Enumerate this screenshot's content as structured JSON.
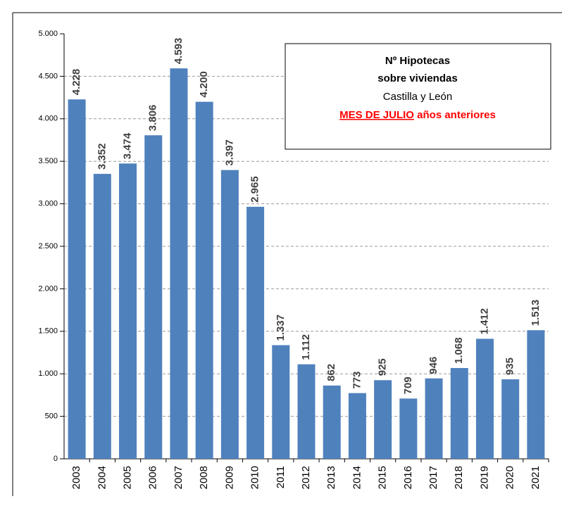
{
  "chart_data": {
    "type": "bar",
    "title": [
      "Nº Hipotecas",
      "sobre viviendas"
    ],
    "subtitle": "Castilla y León",
    "annotation": [
      "MES DE JULIO",
      "años anteriores"
    ],
    "categories": [
      "2003",
      "2004",
      "2005",
      "2006",
      "2007",
      "2008",
      "2009",
      "2010",
      "2011",
      "2012",
      "2013",
      "2014",
      "2015",
      "2016",
      "2017",
      "2018",
      "2019",
      "2020",
      "2021"
    ],
    "values": [
      4228,
      3352,
      3474,
      3806,
      4593,
      4200,
      3397,
      2965,
      1337,
      1112,
      862,
      773,
      925,
      709,
      946,
      1068,
      1412,
      935,
      1513
    ],
    "value_labels": [
      "4.228",
      "3.352",
      "3.474",
      "3.806",
      "4.593",
      "4.200",
      "3.397",
      "2.965",
      "1.337",
      "1.112",
      "862",
      "773",
      "925",
      "709",
      "946",
      "1.068",
      "1.412",
      "935",
      "1.513"
    ],
    "color": "#4f81bd",
    "ylim": [
      0,
      5000
    ],
    "yticks": [
      0,
      {
        "value": 500,
        "label": "500"
      },
      {
        "value": 1000,
        "label": "1.000"
      },
      {
        "value": 1500,
        "label": "1.500"
      },
      {
        "value": 2000,
        "label": "2.000"
      },
      {
        "value": 2500,
        "label": "2.500"
      },
      {
        "value": 3000,
        "label": "3.000"
      },
      {
        "value": 3500,
        "label": "3.500"
      },
      {
        "value": 4000,
        "label": "4.000"
      },
      {
        "value": 4500,
        "label": "4.500"
      },
      {
        "value": 5000,
        "label": "5.000"
      }
    ],
    "grid": true
  }
}
